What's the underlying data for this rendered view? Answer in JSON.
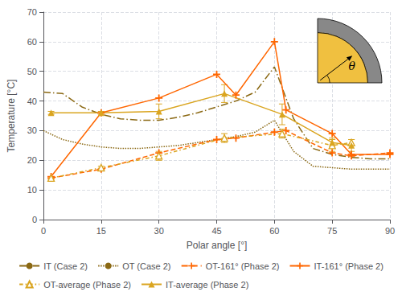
{
  "chart_data": {
    "type": "line",
    "xlabel": "Polar angle [°]",
    "ylabel": "Temperature [°C]",
    "xlim": [
      0,
      90
    ],
    "ylim": [
      0,
      70
    ],
    "xticks": [
      0,
      15,
      30,
      45,
      60,
      75,
      90
    ],
    "yticks": [
      0,
      10,
      20,
      30,
      40,
      50,
      60,
      70
    ],
    "grid": true,
    "legend": "bottom",
    "annotations": [
      {
        "text": "θ"
      }
    ],
    "series": [
      {
        "name": "IT (Case 2)",
        "color": "#8B6914",
        "line_style": "dashdot",
        "marker": "none",
        "x": [
          0,
          5,
          10,
          15,
          20,
          25,
          30,
          35,
          40,
          45,
          50,
          55,
          60,
          65,
          70,
          75,
          80,
          85,
          90
        ],
        "values": [
          43,
          42.5,
          38,
          35.5,
          34,
          33.5,
          33.5,
          34.5,
          36,
          38,
          40,
          43,
          51.5,
          34,
          24,
          22,
          21,
          20.5,
          20.5
        ]
      },
      {
        "name": "OT (Case 2)",
        "color": "#8B6914",
        "line_style": "dotted",
        "marker": "none",
        "x": [
          0,
          5,
          10,
          15,
          20,
          25,
          30,
          35,
          40,
          45,
          50,
          55,
          60,
          65,
          70,
          75,
          80,
          85,
          90
        ],
        "values": [
          30,
          27,
          25.5,
          24.5,
          24,
          24,
          24.5,
          25,
          26,
          27,
          28,
          29.5,
          33.5,
          23,
          18,
          17.5,
          17,
          17,
          17
        ]
      },
      {
        "name": "OT-161° (Phase 2)",
        "color": "#FF6600",
        "line_style": "dashed",
        "marker": "plus",
        "x": [
          2,
          15,
          30,
          45,
          50,
          60,
          63,
          75,
          80,
          90
        ],
        "values": [
          14,
          17,
          22.5,
          27,
          27.5,
          29.5,
          30,
          22.5,
          21.5,
          22.5
        ]
      },
      {
        "name": "IT-161° (Phase 2)",
        "color": "#FF6600",
        "line_style": "solid",
        "marker": "plus",
        "x": [
          2,
          15,
          30,
          45,
          50,
          60,
          63,
          75,
          80,
          90
        ],
        "values": [
          14.5,
          36,
          41,
          49,
          42,
          60,
          37,
          29,
          22,
          22
        ]
      },
      {
        "name": "OT-average (Phase 2)",
        "color": "#DAA520",
        "line_style": "dashdot_short",
        "marker": "triangle-open",
        "x": [
          2,
          15,
          30,
          47,
          62,
          75,
          80
        ],
        "values": [
          14,
          17.5,
          21.5,
          27.5,
          29,
          25,
          26
        ],
        "errors": [
          0.5,
          0.5,
          1.5,
          1.5,
          1.5,
          2.0,
          1.0
        ]
      },
      {
        "name": "IT-average (Phase 2)",
        "color": "#DAA520",
        "line_style": "solid",
        "marker": "triangle",
        "x": [
          2,
          15,
          30,
          47,
          62,
          75,
          80
        ],
        "values": [
          36,
          36,
          36.5,
          42.5,
          35.5,
          26,
          25
        ],
        "errors": [
          0.5,
          0.5,
          2.5,
          3.0,
          3.5,
          1.5,
          2.0
        ]
      }
    ]
  }
}
